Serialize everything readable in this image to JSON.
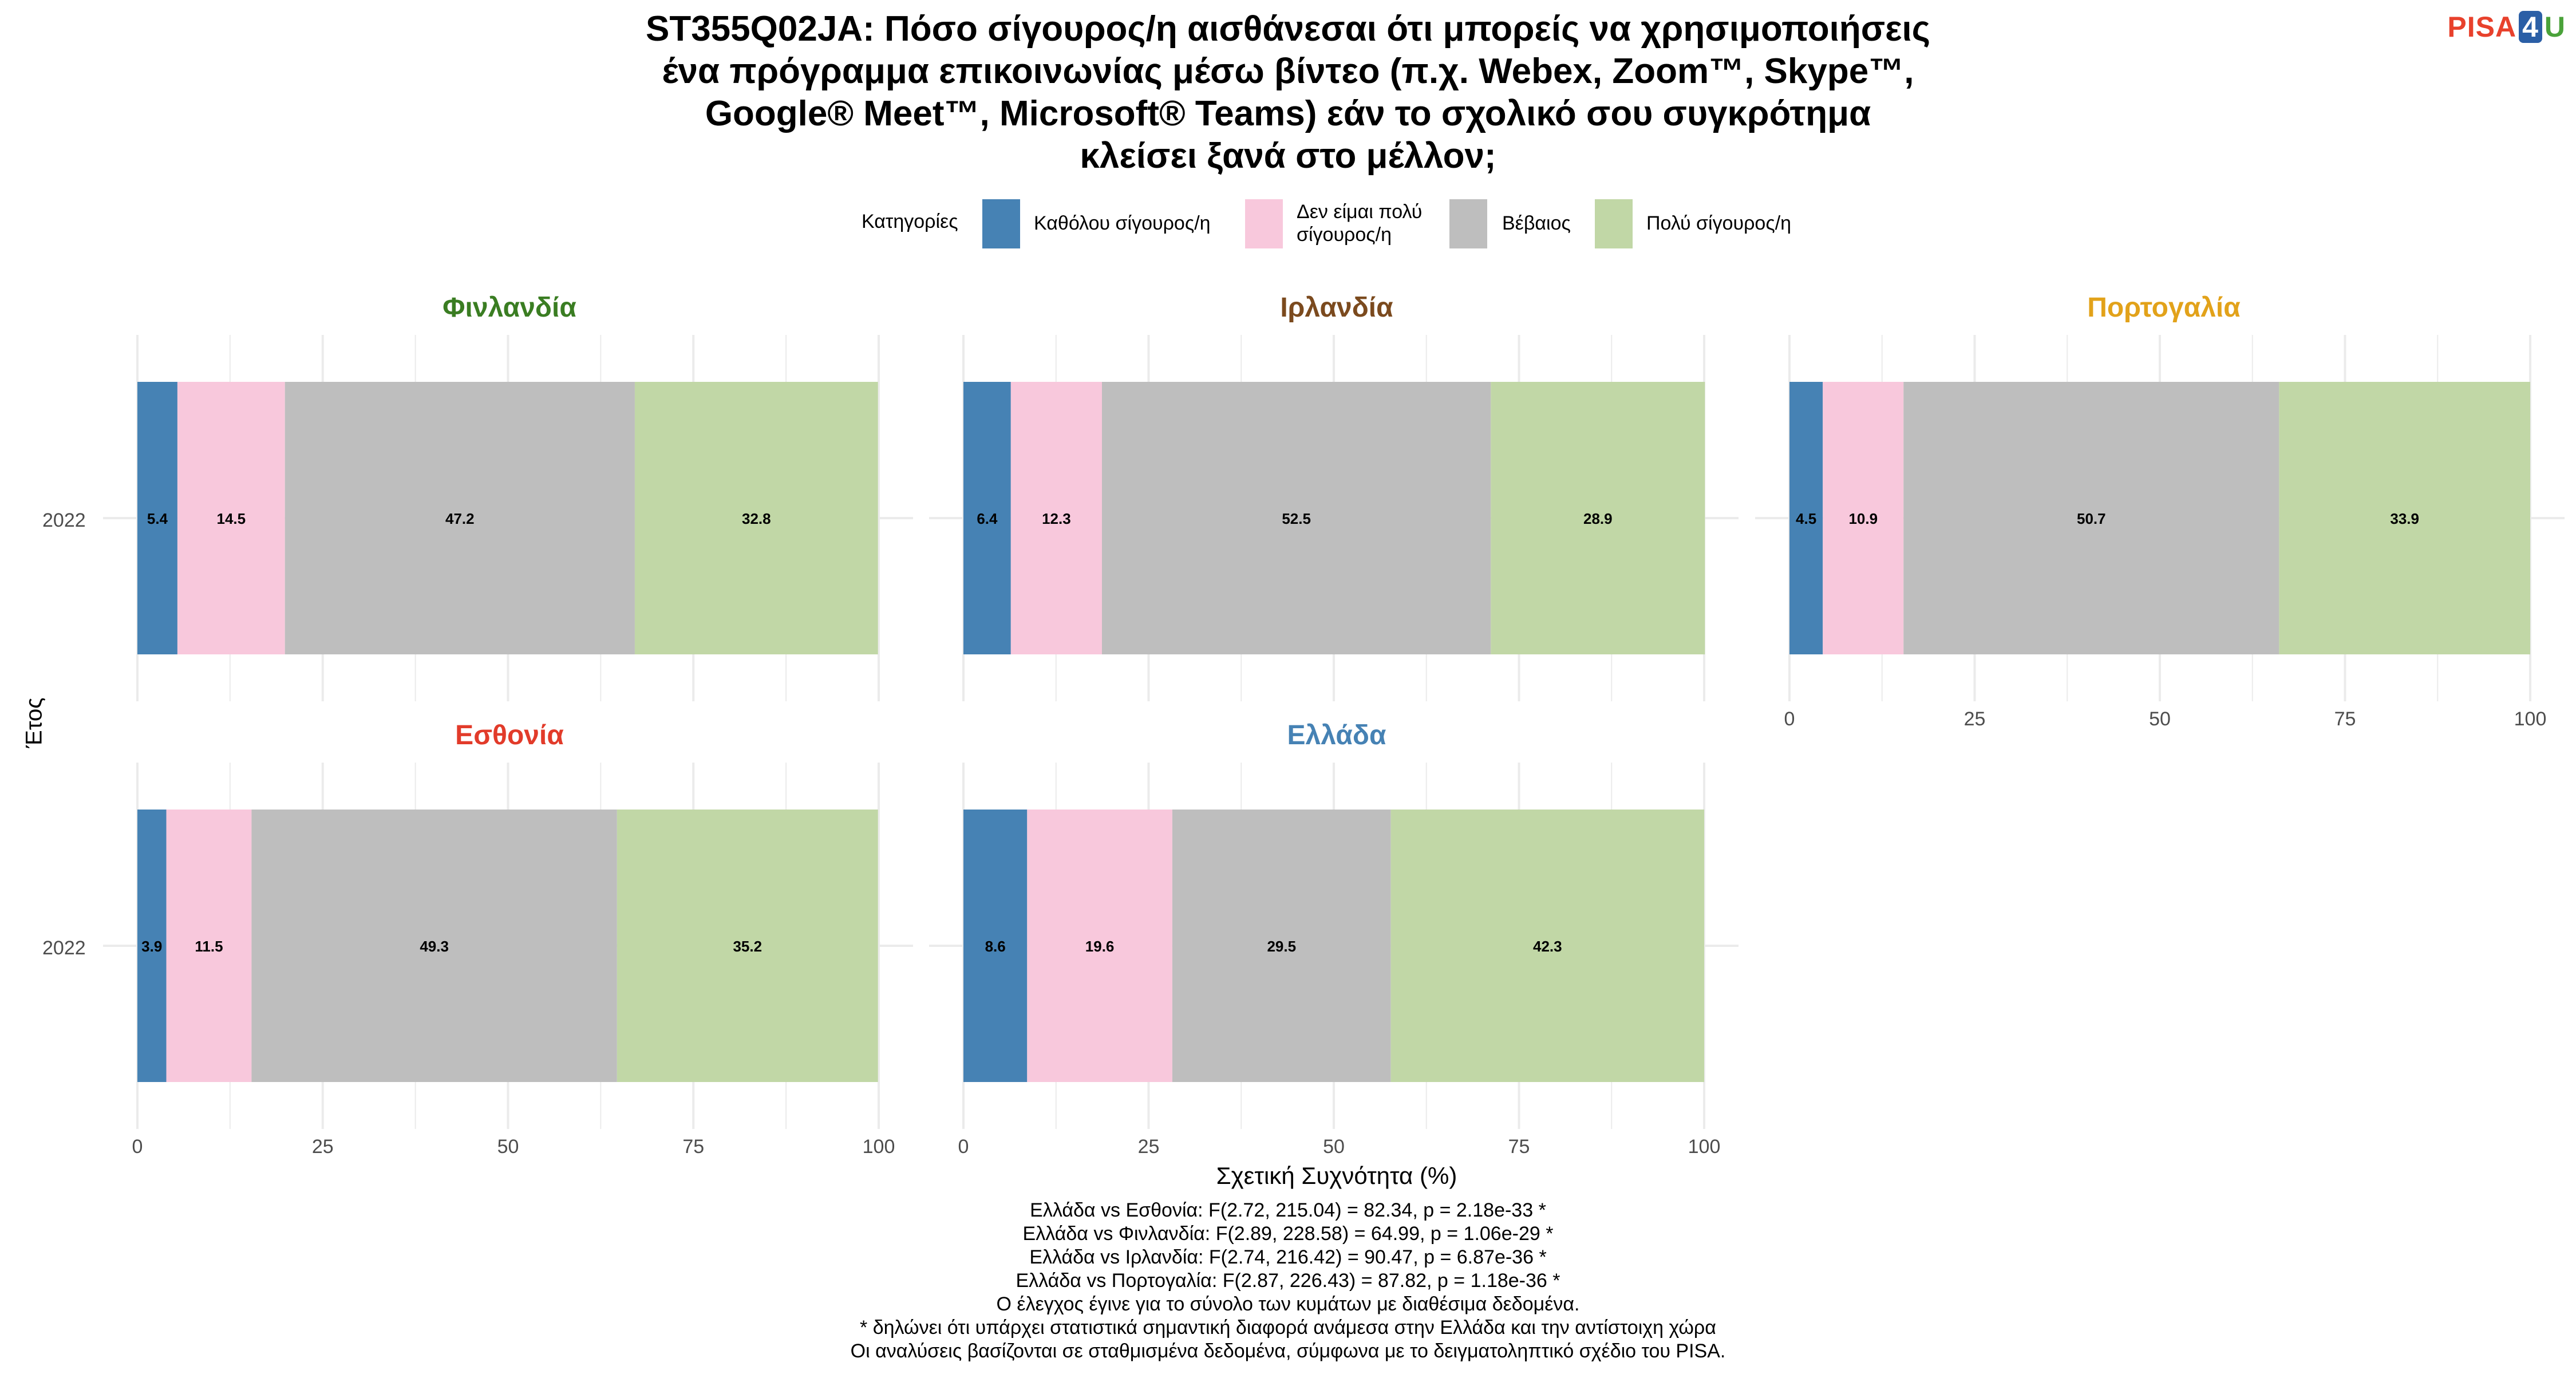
{
  "title_lines": [
    "ST355Q02JA: Πόσο σίγουρος/η αισθάνεσαι ότι μπορείς να χρησιμοποιήσεις",
    "ένα πρόγραμμα επικοινωνίας μέσω βίντεο (π.χ. Webex, Zoom™, Skype™,",
    "Google® Meet™, Microsoft® Teams) εάν το σχολικό σου συγκρότημα",
    "κλείσει ξανά στο μέλλον;"
  ],
  "logo": {
    "part1": "PISA",
    "part2": "4",
    "part3": "U"
  },
  "legend": {
    "title": "Κατηγορίες",
    "items": [
      {
        "label_lines": [
          "Καθόλου σίγουρος/η"
        ],
        "color": "#4682B4"
      },
      {
        "label_lines": [
          "Δεν είμαι πολύ",
          "σίγουρος/η"
        ],
        "color": "#F8C8DC"
      },
      {
        "label_lines": [
          "Βέβαιος"
        ],
        "color": "#BEBEBE"
      },
      {
        "label_lines": [
          "Πολύ σίγουρος/η"
        ],
        "color": "#C1D7A6"
      }
    ]
  },
  "chart_data": {
    "type": "bar",
    "orientation": "horizontal",
    "stacked": true,
    "xlabel": "Σχετική Συχνότητα (%)",
    "ylabel": "Έτος",
    "xlim": [
      0,
      100
    ],
    "xticks": [
      0,
      25,
      50,
      75,
      100
    ],
    "categories": [
      "Καθόλου σίγουρος/η",
      "Δεν είμαι πολύ σίγουρος/η",
      "Βέβαιος",
      "Πολύ σίγουρος/η"
    ],
    "facets": [
      {
        "country": "Φινλανδία",
        "title_color": "#3A7D22",
        "year": "2022",
        "values": [
          5.4,
          14.5,
          47.2,
          32.8
        ]
      },
      {
        "country": "Ιρλανδία",
        "title_color": "#7B4A1E",
        "year": "2022",
        "values": [
          6.4,
          12.3,
          52.5,
          28.9
        ]
      },
      {
        "country": "Πορτογαλία",
        "title_color": "#E2A21A",
        "year": "2022",
        "values": [
          4.5,
          10.9,
          50.7,
          33.9
        ]
      },
      {
        "country": "Εσθονία",
        "title_color": "#E23B2A",
        "year": "2022",
        "values": [
          3.9,
          11.5,
          49.3,
          35.2
        ]
      },
      {
        "country": "Ελλάδα",
        "title_color": "#4682B4",
        "year": "2022",
        "values": [
          8.6,
          19.6,
          29.5,
          42.3
        ]
      }
    ]
  },
  "notes": [
    "Ελλάδα vs Εσθονία: F(2.72, 215.04) = 82.34, p = 2.18e-33 *",
    "Ελλάδα vs Φινλανδία: F(2.89, 228.58) = 64.99, p = 1.06e-29 *",
    "Ελλάδα vs Ιρλανδία: F(2.74, 216.42) = 90.47, p = 6.87e-36 *",
    "Ελλάδα vs Πορτογαλία: F(2.87, 226.43) = 87.82, p = 1.18e-36 *",
    "Ο έλεγχος έγινε για το σύνολο των κυμάτων με διαθέσιμα δεδομένα.",
    "* δηλώνει ότι υπάρχει στατιστικά σημαντική διαφορά ανάμεσα στην Ελλάδα και την αντίστοιχη χώρα",
    "Οι αναλύσεις βασίζονται σε σταθμισμένα δεδομένα, σύμφωνα με το δειγματοληπτικό σχέδιο του PISA."
  ]
}
